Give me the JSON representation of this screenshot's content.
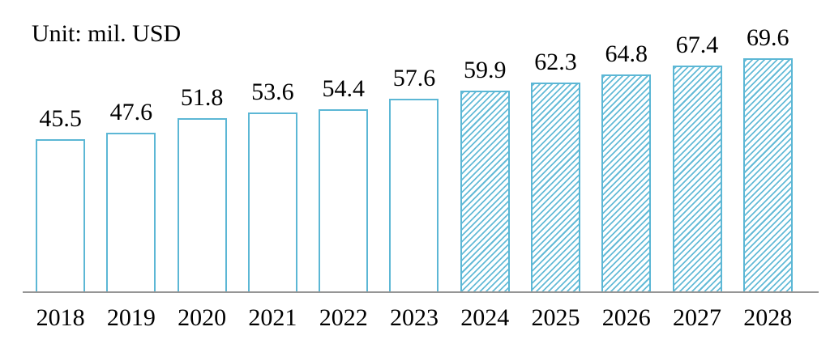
{
  "page": {
    "background": "#ffffff"
  },
  "chart": {
    "unit_label": "Unit: mil. USD",
    "colors": {
      "bar_border": "#5CB7D5",
      "hatch_line": "#5CB7D5",
      "bar_fill": "#FFFFFF",
      "axis_line": "#969696",
      "label_text": "#000000"
    }
  },
  "chart_data": {
    "type": "bar",
    "title": "Unit: mil. USD",
    "categories": [
      "2018",
      "2019",
      "2020",
      "2021",
      "2022",
      "2023",
      "2024",
      "2025",
      "2026",
      "2027",
      "2028"
    ],
    "values": [
      45.5,
      47.6,
      51.8,
      53.6,
      54.4,
      57.6,
      59.9,
      62.3,
      64.8,
      67.4,
      69.6
    ],
    "value_labels": [
      "45.5",
      "47.6",
      "51.8",
      "53.6",
      "54.4",
      "57.6",
      "59.9",
      "62.3",
      "64.8",
      "67.4",
      "69.6"
    ],
    "xlabel": "",
    "ylabel": "mil. USD",
    "ylim": [
      0,
      70
    ],
    "grid": false,
    "legend": null,
    "data_labels": "above-bars",
    "forecast_start_category": "2024",
    "bar_style_actual": "white-fill-blue-outline",
    "bar_style_forecast": "diagonal-hatch-blue-outline"
  }
}
